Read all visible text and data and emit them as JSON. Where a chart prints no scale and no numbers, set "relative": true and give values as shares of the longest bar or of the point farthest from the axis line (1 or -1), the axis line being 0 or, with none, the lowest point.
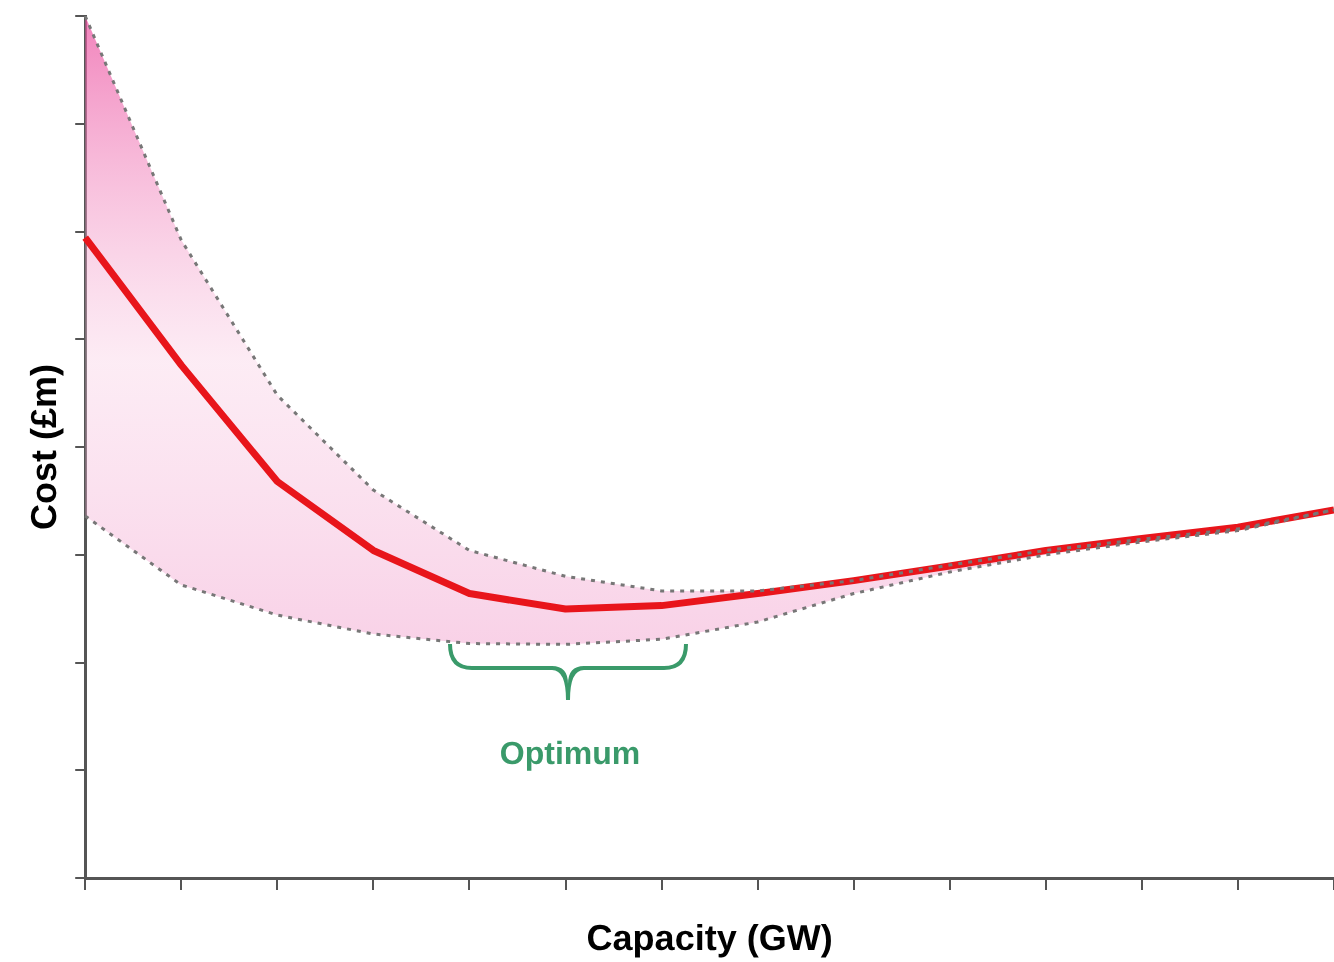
{
  "chart_data": {
    "type": "line",
    "relative": true,
    "xlabel": "Capacity (GW)",
    "ylabel": "Cost (£m)",
    "annotations": [
      "Optimum"
    ],
    "legend": false,
    "grid": false,
    "marker": "none",
    "categories": [
      null,
      null,
      null,
      null,
      null,
      null,
      null,
      null,
      null,
      null,
      null,
      null,
      null,
      null
    ],
    "series": [
      {
        "color": "#777777",
        "line_style": "dotted",
        "values": [
          1.0,
          0.74,
          0.56,
          0.45,
          0.38,
          0.35,
          0.333,
          0.333,
          0.345,
          0.363,
          0.38,
          0.393,
          0.405,
          0.427
        ]
      },
      {
        "color": "#777777",
        "line_style": "dotted",
        "values": [
          0.42,
          0.34,
          0.305,
          0.283,
          0.272,
          0.271,
          0.277,
          0.297,
          0.33,
          0.355,
          0.375,
          0.39,
          0.403,
          0.427
        ]
      },
      {
        "color": "#e8151b",
        "values": [
          0.743,
          0.595,
          0.46,
          0.38,
          0.33,
          0.312,
          0.316,
          0.33,
          0.345,
          0.362,
          0.38,
          0.394,
          0.407,
          0.427
        ],
        "lower": [
          0.42,
          0.34,
          0.305,
          0.283,
          0.272,
          0.271,
          0.277,
          0.297,
          0.33,
          0.355,
          0.375,
          0.39,
          0.403,
          0.427
        ],
        "upper": [
          1.0,
          0.74,
          0.56,
          0.45,
          0.38,
          0.35,
          0.333,
          0.333,
          0.345,
          0.363,
          0.38,
          0.393,
          0.405,
          0.427
        ]
      }
    ]
  }
}
